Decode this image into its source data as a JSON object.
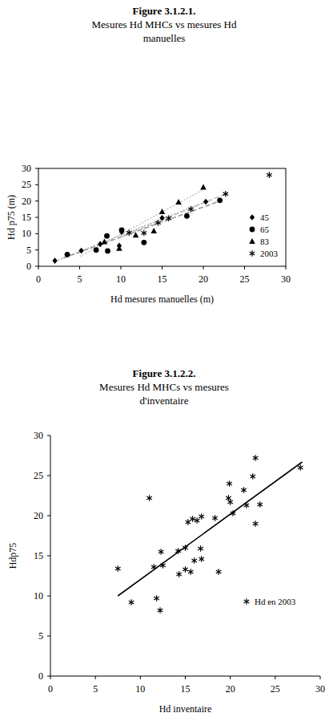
{
  "chart_data": [
    {
      "type": "scatter",
      "title": "Figure 3.1.2.1.",
      "subtitle": [
        "Mesures Hd MHCs vs mesures Hd",
        "manuelles"
      ],
      "x_label": "Hd mesures manuelles (m)",
      "y_label": "Hd p75 (m)",
      "xlim": [
        0,
        30
      ],
      "ylim": [
        0,
        30
      ],
      "xticks": [
        0,
        5,
        10,
        15,
        20,
        25,
        30
      ],
      "yticks": [
        0,
        5,
        10,
        15,
        20,
        25,
        30
      ],
      "grid": false,
      "legend": "right",
      "series": [
        {
          "name": "45",
          "color": "#000000",
          "marker": "diamond",
          "x": [
            2,
            5.2,
            7.5,
            9.8,
            10.1,
            15,
            20.3
          ],
          "values": [
            1.7,
            4.8,
            6.8,
            6.3,
            10.5,
            14.8,
            19.8
          ]
        },
        {
          "name": "65",
          "color": "#000000",
          "marker": "circle",
          "x": [
            3.5,
            7,
            8.3,
            8.4,
            10.1,
            12.8,
            18,
            22
          ],
          "values": [
            3.6,
            5,
            9.3,
            4.7,
            11.1,
            7.3,
            15.4,
            20.2
          ]
        },
        {
          "name": "83",
          "color": "#000000",
          "marker": "triangle",
          "x": [
            8,
            9.8,
            11.8,
            14,
            15,
            17,
            20
          ],
          "values": [
            7.5,
            5.5,
            9.5,
            10.8,
            16.7,
            19.7,
            24.2
          ]
        },
        {
          "name": "2003",
          "color": "#000000",
          "marker": "asterisk",
          "x": [
            11,
            12.8,
            14.5,
            15.8,
            18.5,
            22.7,
            28
          ],
          "values": [
            10.3,
            10.2,
            13.3,
            14.7,
            17.5,
            22.2,
            28
          ]
        },
        {
          "type": "line",
          "line_style": "dotted",
          "color": "#b0b0b0",
          "x": [
            2,
            20.5
          ],
          "values": [
            1.5,
            20
          ]
        },
        {
          "type": "line",
          "line_style": "dashed",
          "color": "#9a9a9a",
          "x": [
            3,
            22
          ],
          "values": [
            2.5,
            20
          ]
        },
        {
          "type": "line",
          "line_style": "dotted",
          "color": "#c8c8c8",
          "x": [
            5,
            20
          ],
          "values": [
            3,
            23.5
          ]
        },
        {
          "type": "line",
          "line_style": "dashed",
          "color": "#c0c0c0",
          "x": [
            10,
            23
          ],
          "values": [
            9,
            22.5
          ]
        }
      ]
    },
    {
      "type": "scatter",
      "title": "Figure 3.1.2.2.",
      "subtitle": [
        "Mesures Hd MHCs vs mesures",
        "d'inventaire"
      ],
      "x_label": "Hd inventaire",
      "y_label": "Hdp75",
      "xlim": [
        0,
        30
      ],
      "ylim": [
        0,
        30
      ],
      "xticks": [
        0,
        5,
        10,
        15,
        20,
        25,
        30
      ],
      "yticks": [
        0,
        5,
        10,
        15,
        20,
        25,
        30
      ],
      "grid": false,
      "legend": "bottom-right",
      "series": [
        {
          "name": "Hd en 2003",
          "color": "#000000",
          "marker": "asterisk",
          "x": [
            7.5,
            9,
            11,
            11.5,
            11.8,
            12.2,
            12.3,
            12.5,
            14.2,
            14.3,
            15,
            15,
            15.3,
            15.6,
            15.8,
            16,
            16.3,
            16.7,
            16.8,
            16.8,
            18.3,
            18.7,
            19.8,
            19.9,
            20,
            20.3,
            21.5,
            21.8,
            22.5,
            22.8,
            22.8,
            23.3,
            27.8
          ],
          "values": [
            13.4,
            9.2,
            22.2,
            13.6,
            9.7,
            8.2,
            15.5,
            13.8,
            15.6,
            12.7,
            13.3,
            16,
            19.2,
            13,
            19.6,
            14.4,
            19.4,
            15.9,
            19.9,
            14.6,
            19.7,
            13,
            22.2,
            24,
            21.7,
            20.3,
            23.2,
            21.3,
            24.9,
            27.2,
            19,
            21.4,
            26
          ]
        },
        {
          "type": "line",
          "line_style": "solid",
          "color": "#000000",
          "x": [
            7.5,
            28
          ],
          "values": [
            10,
            26.7
          ]
        }
      ]
    }
  ]
}
